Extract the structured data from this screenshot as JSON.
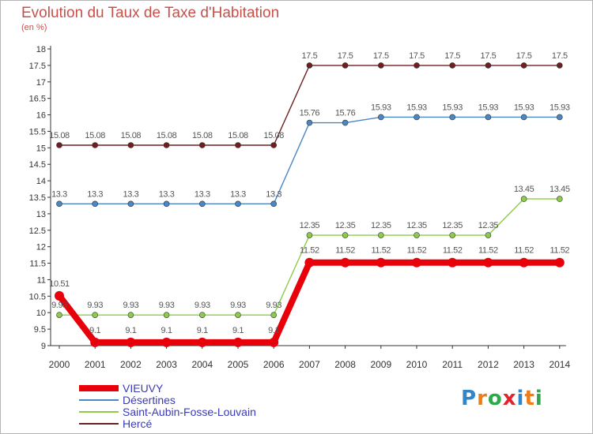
{
  "chart_data": {
    "type": "line",
    "title": "Evolution du Taux de Taxe d'Habitation",
    "unit_label": "(en %)",
    "xlabel": "",
    "ylabel": "",
    "ylim": [
      9,
      18
    ],
    "y_ticks": [
      "9",
      "9.5",
      "10",
      "10.5",
      "11",
      "11.5",
      "12",
      "12.5",
      "13",
      "13.5",
      "14",
      "14.5",
      "15",
      "15.5",
      "16",
      "16.5",
      "17",
      "17.5",
      "18"
    ],
    "categories": [
      "2000",
      "2001",
      "2002",
      "2003",
      "2004",
      "2005",
      "2006",
      "2007",
      "2008",
      "2009",
      "2010",
      "2011",
      "2012",
      "2013",
      "2014"
    ],
    "grid": false,
    "legend_position": "bottom-left",
    "series": [
      {
        "name": "Hercé",
        "color": "#6e1f1f",
        "values": [
          15.08,
          15.08,
          15.08,
          15.08,
          15.08,
          15.08,
          15.08,
          17.5,
          17.5,
          17.5,
          17.5,
          17.5,
          17.5,
          17.5,
          17.5
        ],
        "labels": [
          "15.08",
          "15.08",
          "15.08",
          "15.08",
          "15.08",
          "15.08",
          "15.08",
          "17.5",
          "17.5",
          "17.5",
          "17.5",
          "17.5",
          "17.5",
          "17.5",
          "17.5"
        ]
      },
      {
        "name": "Désertines",
        "color": "#4a87c4",
        "values": [
          13.3,
          13.3,
          13.3,
          13.3,
          13.3,
          13.3,
          13.3,
          15.76,
          15.76,
          15.93,
          15.93,
          15.93,
          15.93,
          15.93,
          15.93
        ],
        "labels": [
          "13.3",
          "13.3",
          "13.3",
          "13.3",
          "13.3",
          "13.3",
          "13.3",
          "15.76",
          "15.76",
          "15.93",
          "15.93",
          "15.93",
          "15.93",
          "15.93",
          "15.93"
        ]
      },
      {
        "name": "Saint-Aubin-Fosse-Louvain",
        "color": "#8ccc4a",
        "values": [
          9.93,
          9.93,
          9.93,
          9.93,
          9.93,
          9.93,
          9.93,
          12.35,
          12.35,
          12.35,
          12.35,
          12.35,
          12.35,
          13.45,
          13.45
        ],
        "labels": [
          "9.93",
          "9.93",
          "9.93",
          "9.93",
          "9.93",
          "9.93",
          "9.93",
          "12.35",
          "12.35",
          "12.35",
          "12.35",
          "12.35",
          "12.35",
          "13.45",
          "13.45"
        ]
      },
      {
        "name": "VIEUVY",
        "color": "#e8000b",
        "values": [
          10.51,
          9.1,
          9.1,
          9.1,
          9.1,
          9.1,
          9.1,
          11.52,
          11.52,
          11.52,
          11.52,
          11.52,
          11.52,
          11.52,
          11.52
        ],
        "labels": [
          "10.51",
          "9.1",
          "9.1",
          "9.1",
          "9.1",
          "9.1",
          "9.1",
          "11.52",
          "11.52",
          "11.52",
          "11.52",
          "11.52",
          "11.52",
          "11.52",
          "11.52"
        ]
      }
    ],
    "legend_order": [
      "VIEUVY",
      "Désertines",
      "Saint-Aubin-Fosse-Louvain",
      "Hercé"
    ]
  },
  "logo": {
    "letters": [
      "P",
      "r",
      "o",
      "x",
      "i",
      "t",
      "i"
    ],
    "colors": [
      "#2f86c8",
      "#f07d14",
      "#2ca94a",
      "#e2242c",
      "#2f86c8",
      "#f07d14",
      "#2ca94a"
    ]
  }
}
